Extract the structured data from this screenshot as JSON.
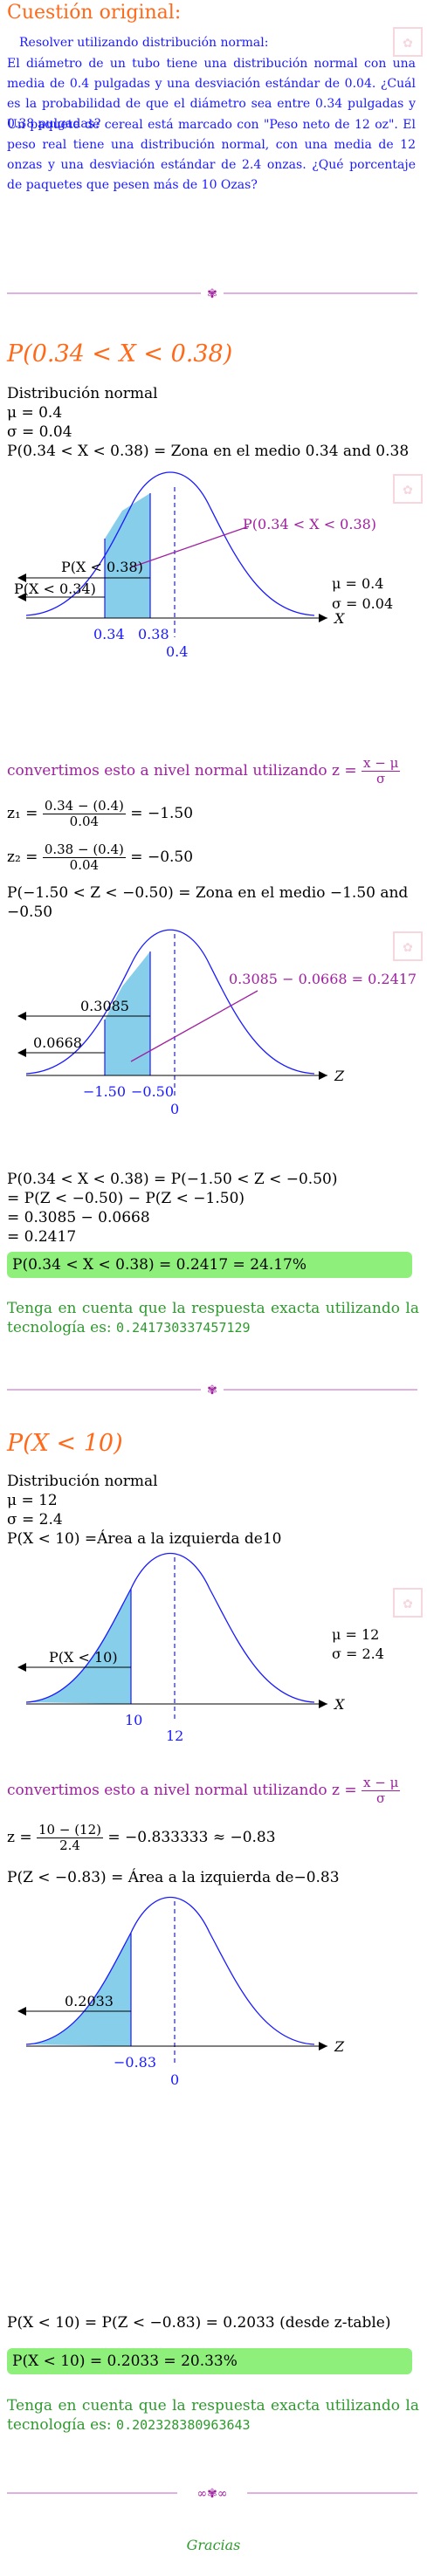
{
  "original": {
    "title": "Cuestión original:",
    "subtitle": "Resolver utilizando distribución normal:",
    "paragraph1": "El diámetro de un tubo tiene una distribución normal con una media de 0.4 pulgadas y una desviación estándar de 0.04. ¿Cuál es la probabilidad de que el diámetro sea entre 0.34 pulgadas y 0.38 pulgadas?",
    "paragraph2": "Un paquete de cereal está marcado con \"Peso neto de 12 oz\". El peso real tiene una distribución normal, con una media de 12 onzas y una desviación estándar de 2.4 onzas. ¿Qué porcentaje de paquetes que pesen más de 10 Ozas?"
  },
  "part1": {
    "heading": "P(0.34 < X < 0.38)",
    "dist": "Distribución normal",
    "mu": "μ = 0.4",
    "sigma": "σ = 0.04",
    "zone": "P(0.34 < X < 0.38) = Zona en el medio 0.34 and 0.38",
    "graph1": {
      "callout": "P(0.34 < X < 0.38)",
      "left_upper": "P(X < 0.38)",
      "left_lower": "P(X < 0.34)",
      "mu": "μ = 0.4",
      "sigma": "σ = 0.04",
      "ticks": [
        "0.34",
        "0.38"
      ],
      "mean": "0.4",
      "axis": "X"
    },
    "convert_text": "convertimos esto a nivel normal utilizando",
    "formula_lhs": "z =",
    "formula_num": "x − μ",
    "formula_den": "σ",
    "z1_lhs": "z₁ =",
    "z1_num": "0.34 − (0.4)",
    "z1_den": "0.04",
    "z1_res": "= −1.50",
    "z2_lhs": "z₂ =",
    "z2_num": "0.38 − (0.4)",
    "z2_den": "0.04",
    "z2_res": "= −0.50",
    "zone2": "P(−1.50 < Z < −0.50) = Zona en el medio −1.50 and −0.50",
    "graph2": {
      "callout": "0.3085 − 0.0668 = 0.2417",
      "left_upper": "0.3085",
      "left_lower": "0.0668",
      "ticks": [
        "−1.50",
        "−0.50"
      ],
      "mean": "0",
      "axis": "Z"
    },
    "calc": [
      "P(0.34 < X < 0.38) = P(−1.50 < Z < −0.50)",
      "= P(Z < −0.50) − P(Z < −1.50)",
      "= 0.3085 − 0.0668",
      "= 0.2417"
    ],
    "answer": "P(0.34 < X < 0.38) = 0.2417 = 24.17%",
    "note": "Tenga en cuenta que la respuesta exacta utilizando la tecnología es:",
    "exact": "0.241730337457129"
  },
  "part2": {
    "heading": "P(X < 10)",
    "dist": "Distribución normal",
    "mu": "μ = 12",
    "sigma": "σ = 2.4",
    "zone": "P(X < 10) =Área a la izquierda de10",
    "graph1": {
      "left_label": "P(X < 10)",
      "mu": "μ = 12",
      "sigma": "σ = 2.4",
      "ticks": [
        "10"
      ],
      "mean": "12",
      "axis": "X"
    },
    "convert_text": "convertimos esto a nivel normal utilizando",
    "formula_lhs": "z =",
    "formula_num": "x − μ",
    "formula_den": "σ",
    "z_lhs": "z =",
    "z_num": "10 − (12)",
    "z_den": "2.4",
    "z_res": "= −0.833333 ≈ −0.83",
    "zone2": "P(Z < −0.83) = Área a la izquierda de−0.83",
    "graph2": {
      "left_label": "0.2033",
      "ticks": [
        "−0.83"
      ],
      "mean": "0",
      "axis": "Z"
    },
    "calc": "P(X < 10) = P(Z < −0.83) = 0.2033 (desde z-table)",
    "answer": "P(X < 10) = 0.2033 = 20.33%",
    "note": "Tenga en cuenta que la respuesta exacta utilizando la tecnología es:",
    "exact": "0.202328380963643"
  },
  "footer": "Gracias",
  "colors": {
    "heading": "#ff6a1a",
    "blue": "#1a1aff",
    "purple": "#a020a0",
    "green": "#2e9a2e",
    "shade": "#87ceeb",
    "answer_bg": "#8ef07a"
  }
}
